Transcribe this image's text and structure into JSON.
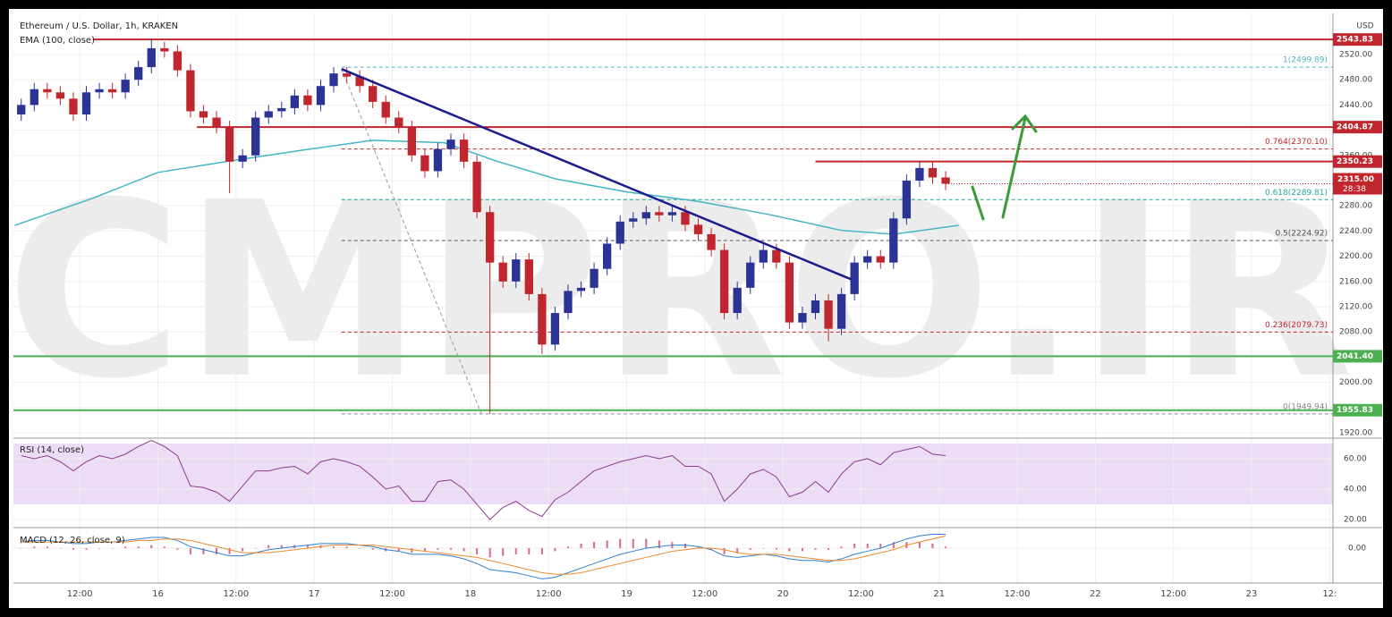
{
  "chart_data": {
    "type": "candlestick",
    "title": "Ethereum / U.S. Dollar, 1h, KRAKEN",
    "watermark": "CMPRO.IR",
    "currency": "USD",
    "xlim": [
      -22.2,
      180.5
    ],
    "xticks": [
      {
        "value": -12,
        "label": "12:00"
      },
      {
        "value": 0,
        "label": "16"
      },
      {
        "value": 12,
        "label": "12:00"
      },
      {
        "value": 24,
        "label": "17"
      },
      {
        "value": 36,
        "label": "12:00"
      },
      {
        "value": 48,
        "label": "18"
      },
      {
        "value": 60,
        "label": "12:00"
      },
      {
        "value": 72,
        "label": "19"
      },
      {
        "value": 84,
        "label": "12:00"
      },
      {
        "value": 96,
        "label": "20"
      },
      {
        "value": 108,
        "label": "12:00"
      },
      {
        "value": 120,
        "label": "21"
      },
      {
        "value": 132,
        "label": "12:00"
      },
      {
        "value": 144,
        "label": "22"
      },
      {
        "value": 156,
        "label": "12:00"
      },
      {
        "value": 168,
        "label": "23"
      },
      {
        "value": 180,
        "label": "12:"
      }
    ],
    "ylim": [
      1911.5,
      2585.2
    ],
    "yticks": [
      {
        "value": 1920,
        "label": "1920.00"
      },
      {
        "value": 1960,
        "label": "1960.00"
      },
      {
        "value": 2000,
        "label": "2000.00"
      },
      {
        "value": 2040,
        "label": "2040.00"
      },
      {
        "value": 2080,
        "label": "2080.00"
      },
      {
        "value": 2120,
        "label": "2120.00"
      },
      {
        "value": 2160,
        "label": "2160.00"
      },
      {
        "value": 2200,
        "label": "2200.00"
      },
      {
        "value": 2240,
        "label": "2240.00"
      },
      {
        "value": 2280,
        "label": "2280.00"
      },
      {
        "value": 2320,
        "label": "2320.00"
      },
      {
        "value": 2360,
        "label": "2360.00"
      },
      {
        "value": 2400,
        "label": "2400.00"
      },
      {
        "value": 2440,
        "label": "2440.00"
      },
      {
        "value": 2480,
        "label": "2480.00"
      },
      {
        "value": 2520,
        "label": "2520.00"
      }
    ],
    "grid": true,
    "up_color": "#2b3494",
    "down_color": "#c0262d",
    "x": [
      -21,
      -19,
      -17,
      -15,
      -13,
      -11,
      -9,
      -7,
      -5,
      -3,
      -1,
      1,
      3,
      5,
      7,
      9,
      11,
      13,
      15,
      17,
      19,
      21,
      23,
      25,
      27,
      29,
      31,
      33,
      35,
      37,
      39,
      41,
      43,
      45,
      47,
      49,
      51,
      53,
      55,
      57,
      59,
      61,
      63,
      65,
      67,
      69,
      71,
      73,
      75,
      77,
      79,
      81,
      83,
      85,
      87,
      89,
      91,
      93,
      95,
      97,
      99,
      101,
      103,
      105,
      107,
      109,
      111,
      113,
      115,
      117,
      119,
      121
    ],
    "open": [
      2425,
      2440,
      2465,
      2460,
      2450,
      2425,
      2460,
      2465,
      2460,
      2480,
      2500,
      2530,
      2525,
      2495,
      2430,
      2420,
      2405,
      2350,
      2360,
      2420,
      2430,
      2435,
      2455,
      2440,
      2470,
      2490,
      2485,
      2470,
      2445,
      2420,
      2405,
      2360,
      2335,
      2370,
      2385,
      2350,
      2270,
      2190,
      2160,
      2195,
      2140,
      2060,
      2110,
      2145,
      2150,
      2180,
      2220,
      2255,
      2260,
      2270,
      2265,
      2270,
      2250,
      2235,
      2210,
      2110,
      2150,
      2190,
      2210,
      2190,
      2095,
      2110,
      2130,
      2085,
      2140,
      2190,
      2200,
      2190,
      2260,
      2320,
      2340,
      2325
    ],
    "high": [
      2450,
      2475,
      2475,
      2470,
      2460,
      2470,
      2475,
      2475,
      2490,
      2510,
      2545,
      2540,
      2535,
      2505,
      2440,
      2430,
      2415,
      2370,
      2430,
      2440,
      2445,
      2465,
      2465,
      2480,
      2500,
      2500,
      2495,
      2480,
      2455,
      2430,
      2415,
      2370,
      2380,
      2395,
      2395,
      2360,
      2280,
      2200,
      2205,
      2205,
      2150,
      2120,
      2155,
      2160,
      2190,
      2230,
      2265,
      2270,
      2280,
      2280,
      2280,
      2280,
      2260,
      2245,
      2220,
      2160,
      2200,
      2220,
      2220,
      2200,
      2120,
      2140,
      2140,
      2150,
      2200,
      2210,
      2210,
      2270,
      2330,
      2350,
      2350,
      2335
    ],
    "low": [
      2415,
      2430,
      2450,
      2440,
      2415,
      2415,
      2450,
      2450,
      2450,
      2470,
      2490,
      2515,
      2485,
      2420,
      2410,
      2395,
      2300,
      2340,
      2350,
      2410,
      2420,
      2425,
      2430,
      2430,
      2460,
      2475,
      2460,
      2435,
      2410,
      2395,
      2350,
      2325,
      2325,
      2360,
      2340,
      2260,
      1950,
      2150,
      2150,
      2130,
      2045,
      2050,
      2100,
      2135,
      2140,
      2170,
      2210,
      2245,
      2250,
      2255,
      2255,
      2240,
      2225,
      2200,
      2100,
      2100,
      2140,
      2180,
      2180,
      2085,
      2085,
      2100,
      2065,
      2075,
      2130,
      2180,
      2180,
      2180,
      2250,
      2310,
      2315,
      2305
    ],
    "close": [
      2440,
      2465,
      2460,
      2450,
      2425,
      2460,
      2465,
      2460,
      2480,
      2500,
      2530,
      2525,
      2495,
      2430,
      2420,
      2405,
      2350,
      2360,
      2420,
      2430,
      2435,
      2455,
      2440,
      2470,
      2490,
      2485,
      2470,
      2445,
      2420,
      2405,
      2360,
      2335,
      2370,
      2385,
      2350,
      2270,
      2190,
      2160,
      2195,
      2140,
      2060,
      2110,
      2145,
      2150,
      2180,
      2220,
      2255,
      2260,
      2270,
      2265,
      2270,
      2250,
      2235,
      2210,
      2110,
      2150,
      2190,
      2210,
      2190,
      2095,
      2110,
      2130,
      2085,
      2140,
      2190,
      2200,
      2190,
      2260,
      2320,
      2340,
      2325,
      2315
    ],
    "ema": {
      "name": "EMA (100, close)",
      "color": "#45b5c4",
      "x": [
        -22,
        -10,
        0,
        11,
        22,
        33,
        44,
        52,
        61,
        72,
        83,
        94,
        105,
        113,
        123
      ],
      "values": [
        2249,
        2292,
        2333,
        2351,
        2368,
        2384,
        2380,
        2351,
        2323,
        2302,
        2287,
        2266,
        2241,
        2235,
        2249
      ]
    },
    "levels": [
      {
        "value": 2543.83,
        "color": "#c0262d",
        "from": -10
      },
      {
        "value": 2404.87,
        "color": "#c0262d",
        "from": 6
      },
      {
        "value": 2350.23,
        "color": "#c0262d",
        "from": 101
      },
      {
        "value": 2041.4,
        "label": "2041.40",
        "color": "#4caf50",
        "from": -22.2
      },
      {
        "value": 1955.83,
        "color": "#4caf50",
        "from": -22.2
      }
    ],
    "fib": {
      "from": 28.2,
      "levels": [
        {
          "value": 2499.89,
          "label": "1(2499.89)",
          "color": "#4fb3bf"
        },
        {
          "value": 2370.1,
          "label": "0.764(2370.10)",
          "color": "#c0262d"
        },
        {
          "value": 2289.81,
          "label": "0.618(2289.81)",
          "color": "#26a69a"
        },
        {
          "value": 2224.92,
          "label": "0.5(2224.92)",
          "color": "#555555"
        },
        {
          "value": 2079.73,
          "label": "0.236(2079.73)",
          "color": "#c0262d"
        },
        {
          "value": 1949.94,
          "label": "0(1949.94)",
          "color": "#888888"
        }
      ]
    },
    "trendline": {
      "color": "#1c1c8f",
      "x": [
        28.2,
        106.6
      ],
      "values": [
        2497,
        2163
      ]
    },
    "projection": {
      "color": "#999999",
      "x": [
        28.2,
        49.7
      ],
      "values": [
        2497,
        1950
      ]
    },
    "last_price": {
      "value": 2315,
      "label": "2315.00",
      "countdown": "28:38"
    },
    "rsi": {
      "name": "RSI (14, close)",
      "color": "#8e3a8e",
      "band_color": "#ecdcf5",
      "ylim": [
        14.7,
        73.5
      ],
      "yticks": [
        {
          "value": 20,
          "label": "20.00"
        },
        {
          "value": 40,
          "label": "40.00"
        },
        {
          "value": 60,
          "label": "60.00"
        }
      ],
      "band": [
        30,
        70
      ],
      "values": [
        62,
        60,
        62,
        58,
        52,
        58,
        62,
        60,
        63,
        68,
        72,
        68,
        62,
        42,
        41,
        38,
        32,
        42,
        52,
        52,
        54,
        55,
        50,
        58,
        60,
        58,
        55,
        48,
        40,
        42,
        32,
        32,
        45,
        46,
        40,
        30,
        20,
        28,
        32,
        26,
        22,
        33,
        38,
        45,
        52,
        55,
        58,
        60,
        62,
        60,
        62,
        55,
        55,
        50,
        32,
        40,
        50,
        53,
        48,
        35,
        38,
        45,
        38,
        50,
        58,
        60,
        56,
        64,
        66,
        68,
        63,
        62
      ]
    },
    "macd": {
      "name": "MACD (12, 26, close, 9)",
      "ylim": [
        -22.7,
        13.4
      ],
      "yticks": [
        {
          "value": 0,
          "label": "0.00"
        }
      ],
      "macd": {
        "color": "#2f7fd1",
        "values": [
          4,
          5,
          5,
          4,
          3,
          3,
          4,
          4,
          5,
          6,
          7,
          7,
          5,
          1,
          -1,
          -3,
          -5,
          -5,
          -3,
          -1,
          0,
          1,
          2,
          3,
          3,
          3,
          2,
          1,
          -1,
          -2,
          -4,
          -4,
          -4,
          -5,
          -7,
          -10,
          -14,
          -15,
          -16,
          -18,
          -20,
          -19,
          -16,
          -13,
          -10,
          -7,
          -4,
          -2,
          0,
          1,
          2,
          2,
          1,
          -1,
          -5,
          -6,
          -5,
          -4,
          -5,
          -7,
          -8,
          -8,
          -9,
          -7,
          -4,
          -2,
          0,
          3,
          6,
          8,
          9,
          9
        ]
      },
      "signal": {
        "color": "#f08a2a",
        "values": [
          4,
          4,
          4,
          4,
          4,
          4,
          4,
          4,
          4,
          5,
          5,
          6,
          6,
          5,
          3,
          1,
          -1,
          -3,
          -3,
          -3,
          -2,
          -1,
          0,
          1,
          2,
          2,
          2,
          2,
          1,
          0,
          -1,
          -2,
          -3,
          -4,
          -5,
          -6,
          -8,
          -10,
          -12,
          -14,
          -16,
          -17,
          -17,
          -16,
          -14,
          -12,
          -10,
          -8,
          -6,
          -4,
          -2,
          -1,
          0,
          0,
          -1,
          -3,
          -4,
          -4,
          -4,
          -5,
          -6,
          -7,
          -8,
          -8,
          -7,
          -5,
          -3,
          -1,
          2,
          4,
          6,
          8
        ]
      },
      "histogram": {
        "color": "#d9698a",
        "values": [
          0,
          1,
          1,
          0,
          -1,
          -1,
          0,
          0,
          1,
          1,
          2,
          1,
          -1,
          -4,
          -4,
          -4,
          -4,
          -2,
          0,
          2,
          2,
          2,
          2,
          2,
          1,
          1,
          0,
          -1,
          -2,
          -2,
          -3,
          -2,
          -1,
          -1,
          -2,
          -4,
          -6,
          -5,
          -4,
          -4,
          -4,
          -2,
          1,
          3,
          4,
          5,
          6,
          6,
          6,
          5,
          4,
          3,
          1,
          -1,
          -4,
          -3,
          -1,
          0,
          -1,
          -2,
          -2,
          -1,
          -1,
          1,
          3,
          3,
          3,
          4,
          4,
          4,
          3,
          1
        ]
      }
    }
  }
}
